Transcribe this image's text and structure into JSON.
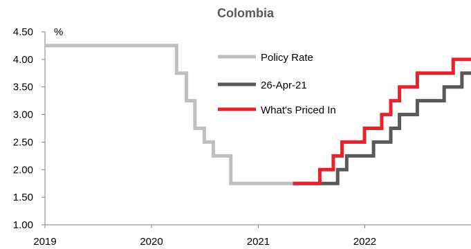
{
  "chart_data": {
    "type": "line",
    "title": "Colombia",
    "ylabel": "%",
    "xlabel": "",
    "ylim": [
      1.0,
      4.5
    ],
    "xlim": [
      "2019-01-01",
      "2022-12-31"
    ],
    "yticks": [
      "1.00",
      "1.50",
      "2.00",
      "2.50",
      "3.00",
      "3.50",
      "4.00",
      "4.50"
    ],
    "xticks": [
      "2019",
      "2020",
      "2021",
      "2022"
    ],
    "legend_position": "top-right",
    "grid": false,
    "series": [
      {
        "name": "Policy Rate",
        "color": "#bfbfbf",
        "step": true,
        "points": [
          [
            "2019-01-01",
            4.25
          ],
          [
            "2020-03-27",
            3.75
          ],
          [
            "2020-04-30",
            3.25
          ],
          [
            "2020-05-29",
            2.75
          ],
          [
            "2020-06-30",
            2.5
          ],
          [
            "2020-07-31",
            2.25
          ],
          [
            "2020-09-29",
            1.75
          ],
          [
            "2021-04-30",
            1.75
          ]
        ]
      },
      {
        "name": "26-Apr-21",
        "color": "#595959",
        "step": true,
        "points": [
          [
            "2021-04-30",
            1.75
          ],
          [
            "2021-09-30",
            2.0
          ],
          [
            "2021-10-31",
            2.25
          ],
          [
            "2022-01-31",
            2.5
          ],
          [
            "2022-03-31",
            2.75
          ],
          [
            "2022-04-30",
            3.0
          ],
          [
            "2022-06-30",
            3.25
          ],
          [
            "2022-09-30",
            3.5
          ],
          [
            "2022-11-30",
            3.75
          ],
          [
            "2022-12-31",
            3.75
          ]
        ]
      },
      {
        "name": "What's Priced In",
        "color": "#e8212c",
        "step": true,
        "points": [
          [
            "2021-04-30",
            1.75
          ],
          [
            "2021-07-31",
            2.0
          ],
          [
            "2021-09-15",
            2.25
          ],
          [
            "2021-10-15",
            2.5
          ],
          [
            "2021-12-31",
            2.75
          ],
          [
            "2022-02-28",
            3.0
          ],
          [
            "2022-03-31",
            3.25
          ],
          [
            "2022-04-30",
            3.5
          ],
          [
            "2022-06-30",
            3.75
          ],
          [
            "2022-10-31",
            4.0
          ],
          [
            "2022-12-31",
            4.0
          ]
        ]
      }
    ]
  }
}
